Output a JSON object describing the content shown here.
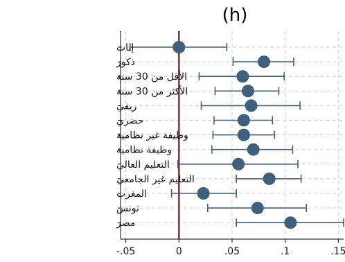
{
  "chart_data": {
    "type": "scatter",
    "subtype": "coefficient-plot-with-confidence-intervals",
    "orientation": "horizontal",
    "title": "(h)",
    "xlabel": "",
    "ylabel": "",
    "xlim": [
      -0.055,
      0.155
    ],
    "xticks": [
      -0.05,
      0,
      0.05,
      0.1,
      0.15
    ],
    "xtick_labels": [
      "-.05",
      "0",
      ".05",
      ".1",
      ".15"
    ],
    "grid": true,
    "reference_line": {
      "x": 0,
      "color": "#8b2d34"
    },
    "colors": {
      "marker": "#3e5f7d",
      "ci": "#3e5f7d",
      "grid": "#cfcfcf",
      "axis": "#000000"
    },
    "categories": [
      "إناث",
      "ذكور",
      "الأقل من 30 سنة",
      "الأكثر من 30 سنة",
      "ريفي",
      "حضري",
      "وظيفة غير نظامية",
      "وظيفة نظامية",
      "التعليم العالي",
      "التعليم غير الجامعي",
      "المغرب",
      "تونس",
      "مصر"
    ],
    "estimate": [
      0.0,
      0.08,
      0.06,
      0.065,
      0.068,
      0.061,
      0.061,
      0.07,
      0.056,
      0.085,
      0.023,
      0.074,
      0.105
    ],
    "ci_low": [
      -0.046,
      0.051,
      0.019,
      0.034,
      0.021,
      0.033,
      0.032,
      0.031,
      -0.001,
      0.054,
      -0.007,
      0.027,
      0.054
    ],
    "ci_high": [
      0.045,
      0.108,
      0.099,
      0.094,
      0.114,
      0.088,
      0.09,
      0.107,
      0.112,
      0.115,
      0.054,
      0.12,
      0.155
    ]
  }
}
